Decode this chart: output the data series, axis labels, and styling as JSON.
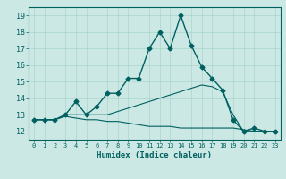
{
  "xlabel": "Humidex (Indice chaleur)",
  "ylabel": "",
  "bg_color": "#cce8e4",
  "grid_color": "#aad4ce",
  "line_color": "#006060",
  "xlim": [
    -0.5,
    23.5
  ],
  "ylim": [
    11.5,
    19.5
  ],
  "xticks": [
    0,
    1,
    2,
    3,
    4,
    5,
    6,
    7,
    8,
    9,
    10,
    11,
    12,
    13,
    14,
    15,
    16,
    17,
    18,
    19,
    20,
    21,
    22,
    23
  ],
  "yticks": [
    12,
    13,
    14,
    15,
    16,
    17,
    18,
    19
  ],
  "series": [
    {
      "x": [
        0,
        1,
        2,
        3,
        4,
        5,
        6,
        7,
        8,
        9,
        10,
        11,
        12,
        13,
        14,
        15,
        16,
        17,
        18,
        19,
        20,
        21,
        22,
        23
      ],
      "y": [
        12.7,
        12.7,
        12.7,
        13.0,
        13.8,
        13.0,
        13.5,
        14.3,
        14.3,
        15.2,
        15.2,
        17.0,
        18.0,
        17.0,
        19.0,
        17.2,
        15.9,
        15.2,
        14.5,
        12.7,
        12.0,
        12.2,
        12.0,
        12.0
      ],
      "marker": "D",
      "markersize": 2.5,
      "linewidth": 1.0
    },
    {
      "x": [
        0,
        1,
        2,
        3,
        4,
        5,
        6,
        7,
        8,
        9,
        10,
        11,
        12,
        13,
        14,
        15,
        16,
        17,
        18,
        19,
        20,
        21,
        22,
        23
      ],
      "y": [
        12.7,
        12.7,
        12.7,
        13.0,
        13.0,
        13.0,
        13.0,
        13.0,
        13.2,
        13.4,
        13.6,
        13.8,
        14.0,
        14.2,
        14.4,
        14.6,
        14.8,
        14.7,
        14.4,
        13.0,
        12.0,
        12.0,
        12.0,
        12.0
      ],
      "marker": null,
      "markersize": 0,
      "linewidth": 0.8
    },
    {
      "x": [
        0,
        1,
        2,
        3,
        4,
        5,
        6,
        7,
        8,
        9,
        10,
        11,
        12,
        13,
        14,
        15,
        16,
        17,
        18,
        19,
        20,
        21,
        22,
        23
      ],
      "y": [
        12.7,
        12.7,
        12.7,
        12.9,
        12.8,
        12.7,
        12.7,
        12.6,
        12.6,
        12.5,
        12.4,
        12.3,
        12.3,
        12.3,
        12.2,
        12.2,
        12.2,
        12.2,
        12.2,
        12.2,
        12.1,
        12.0,
        12.0,
        12.0
      ],
      "marker": null,
      "markersize": 0,
      "linewidth": 0.8
    }
  ],
  "xlabel_fontsize": 6.5,
  "xlabel_fontweight": "bold",
  "xtick_fontsize": 5.0,
  "ytick_fontsize": 6.0
}
